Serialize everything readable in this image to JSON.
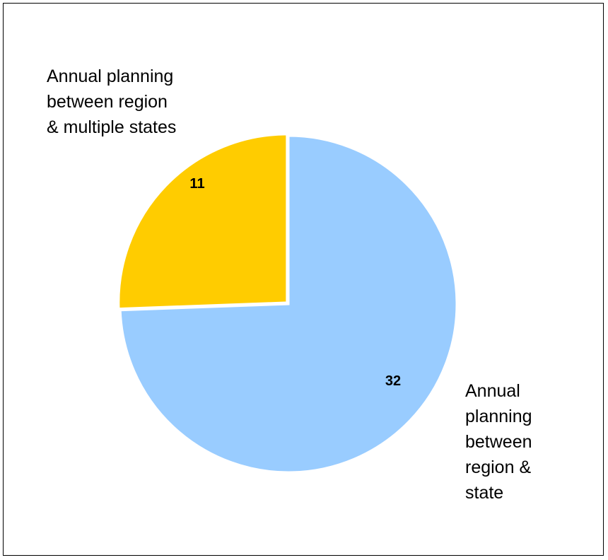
{
  "chart_data": {
    "type": "pie",
    "slices": [
      {
        "label": "Annual planning\nbetween region\n& state",
        "display_label": "Annual\nplanning\nbetween\nregion &\nstate",
        "value": 32,
        "value_label": "32",
        "color": "#99CCFF"
      },
      {
        "label": "Annual planning between region & multiple states",
        "display_label": "Annual planning\nbetween region\n& multiple states",
        "value": 11,
        "value_label": "11",
        "color": "#FFCC00"
      }
    ],
    "title": "",
    "legend": "none"
  }
}
